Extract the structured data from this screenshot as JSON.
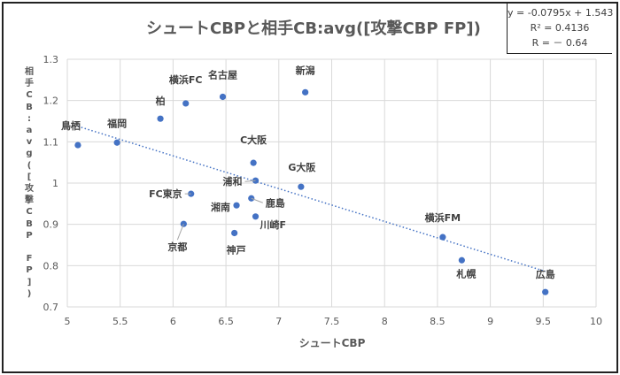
{
  "chart_data": {
    "type": "scatter",
    "title": "シュートCBPと相手CB:avg([攻撃CBP FP])",
    "xlabel": "シュートCBP",
    "ylabel": "相手CB:avg([攻撃CBP FP])",
    "xlim": [
      5,
      10
    ],
    "ylim": [
      0.7,
      1.3
    ],
    "x_ticks": [
      "5",
      "5.5",
      "6",
      "6.5",
      "7",
      "7.5",
      "8",
      "8.5",
      "9",
      "9.5",
      "10"
    ],
    "y_ticks": [
      "0.7",
      "0.8",
      "0.9",
      "1",
      "1.1",
      "1.2",
      "1.3"
    ],
    "grid": true,
    "marker_color": "#4472C4",
    "trendline": {
      "type": "linear",
      "style": "dotted",
      "slope": -0.0795,
      "intercept": 1.543,
      "equation": "y = -0.0795x + 1.543",
      "r_squared": "R² = 0.4136",
      "r": "R = － 0.64"
    },
    "points": [
      {
        "label": "鳥栖",
        "x": 5.1,
        "y": 1.092
      },
      {
        "label": "福岡",
        "x": 5.47,
        "y": 1.098
      },
      {
        "label": "柏",
        "x": 5.88,
        "y": 1.156
      },
      {
        "label": "横浜FC",
        "x": 6.12,
        "y": 1.193
      },
      {
        "label": "名古屋",
        "x": 6.47,
        "y": 1.209
      },
      {
        "label": "新潟",
        "x": 7.25,
        "y": 1.22
      },
      {
        "label": "C大阪",
        "x": 6.76,
        "y": 1.049
      },
      {
        "label": "浦和",
        "x": 6.78,
        "y": 1.006
      },
      {
        "label": "G大阪",
        "x": 7.21,
        "y": 0.991
      },
      {
        "label": "FC東京",
        "x": 6.17,
        "y": 0.974
      },
      {
        "label": "鹿島",
        "x": 6.74,
        "y": 0.963
      },
      {
        "label": "湘南",
        "x": 6.6,
        "y": 0.946
      },
      {
        "label": "川崎F",
        "x": 6.78,
        "y": 0.919
      },
      {
        "label": "京都",
        "x": 6.1,
        "y": 0.901
      },
      {
        "label": "神戸",
        "x": 6.58,
        "y": 0.879
      },
      {
        "label": "横浜FM",
        "x": 8.55,
        "y": 0.869
      },
      {
        "label": "札幌",
        "x": 8.73,
        "y": 0.813
      },
      {
        "label": "広島",
        "x": 9.52,
        "y": 0.736
      }
    ]
  }
}
